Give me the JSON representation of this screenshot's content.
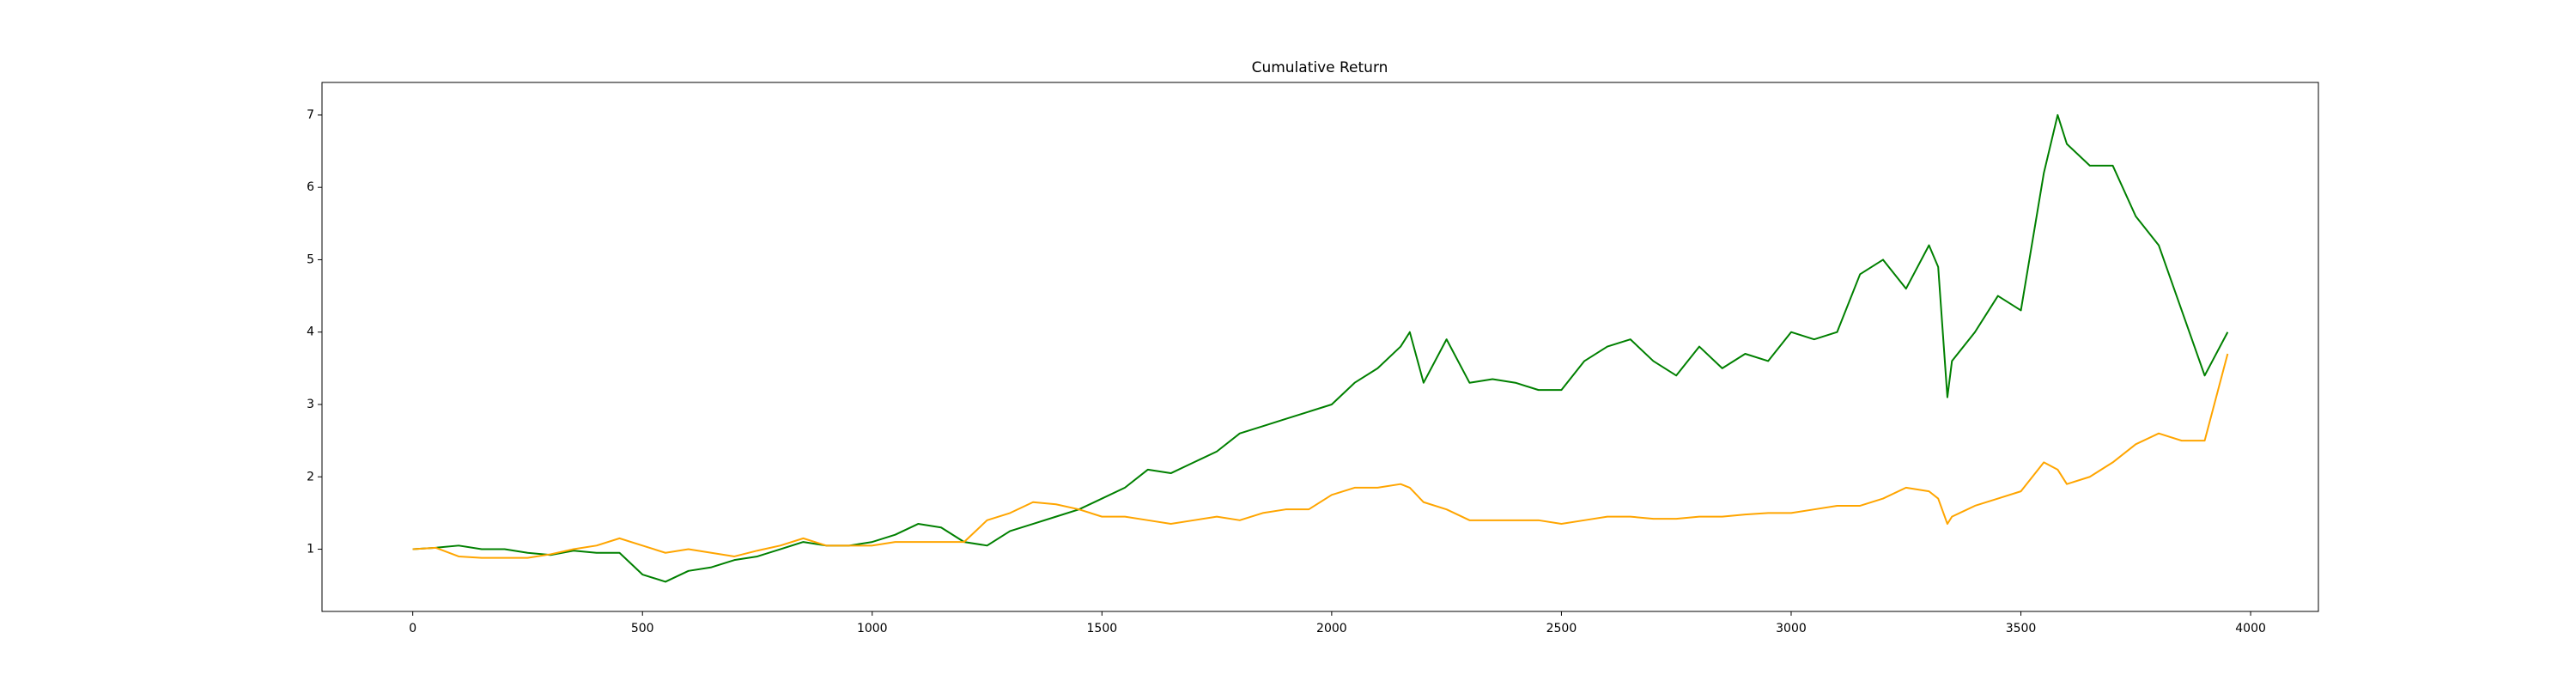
{
  "chart_data": {
    "type": "line",
    "title": "Cumulative Return",
    "x": [
      0,
      50,
      100,
      150,
      200,
      250,
      300,
      350,
      400,
      450,
      500,
      550,
      600,
      650,
      700,
      750,
      800,
      850,
      900,
      950,
      1000,
      1050,
      1100,
      1150,
      1200,
      1250,
      1300,
      1350,
      1400,
      1450,
      1500,
      1550,
      1600,
      1650,
      1700,
      1750,
      1800,
      1850,
      1900,
      1950,
      2000,
      2050,
      2100,
      2150,
      2170,
      2200,
      2250,
      2300,
      2350,
      2400,
      2450,
      2500,
      2550,
      2600,
      2650,
      2700,
      2750,
      2800,
      2850,
      2900,
      2950,
      3000,
      3050,
      3100,
      3150,
      3200,
      3250,
      3300,
      3320,
      3340,
      3350,
      3400,
      3450,
      3500,
      3550,
      3580,
      3600,
      3650,
      3700,
      3750,
      3800,
      3850,
      3900,
      3950
    ],
    "series": [
      {
        "color": "#008000",
        "values": [
          1.0,
          1.02,
          1.05,
          1.0,
          1.0,
          0.95,
          0.92,
          0.98,
          0.95,
          0.95,
          0.65,
          0.55,
          0.7,
          0.75,
          0.85,
          0.9,
          1.0,
          1.1,
          1.05,
          1.05,
          1.1,
          1.2,
          1.35,
          1.3,
          1.1,
          1.05,
          1.25,
          1.35,
          1.45,
          1.55,
          1.7,
          1.85,
          2.1,
          2.05,
          2.2,
          2.35,
          2.6,
          2.7,
          2.8,
          2.9,
          3.0,
          3.3,
          3.5,
          3.8,
          4.0,
          3.3,
          3.9,
          3.3,
          3.35,
          3.3,
          3.2,
          3.2,
          3.6,
          3.8,
          3.9,
          3.6,
          3.4,
          3.8,
          3.5,
          3.7,
          3.6,
          4.0,
          3.9,
          4.0,
          4.8,
          5.0,
          4.6,
          5.2,
          4.9,
          3.1,
          3.6,
          4.0,
          4.5,
          4.3,
          6.2,
          7.0,
          6.6,
          6.3,
          6.3,
          5.6,
          5.2,
          4.3,
          3.4,
          4.0
        ]
      },
      {
        "color": "#ffa500",
        "values": [
          1.0,
          1.02,
          0.9,
          0.88,
          0.88,
          0.88,
          0.93,
          1.0,
          1.05,
          1.15,
          1.05,
          0.95,
          1.0,
          0.95,
          0.9,
          0.98,
          1.05,
          1.15,
          1.05,
          1.05,
          1.05,
          1.1,
          1.1,
          1.1,
          1.1,
          1.4,
          1.5,
          1.65,
          1.62,
          1.55,
          1.45,
          1.45,
          1.4,
          1.35,
          1.4,
          1.45,
          1.4,
          1.5,
          1.55,
          1.55,
          1.75,
          1.85,
          1.85,
          1.9,
          1.85,
          1.65,
          1.55,
          1.4,
          1.4,
          1.4,
          1.4,
          1.35,
          1.4,
          1.45,
          1.45,
          1.42,
          1.42,
          1.45,
          1.45,
          1.48,
          1.5,
          1.5,
          1.55,
          1.6,
          1.6,
          1.7,
          1.85,
          1.8,
          1.7,
          1.35,
          1.45,
          1.6,
          1.7,
          1.8,
          2.2,
          2.1,
          1.9,
          2.0,
          2.2,
          2.45,
          2.6,
          2.5,
          2.5,
          3.7
        ]
      }
    ],
    "xlim": [
      -197.5,
      4147.5
    ],
    "ylim": [
      0.14,
      7.45
    ],
    "xticks": [
      0,
      500,
      1000,
      1500,
      2000,
      2500,
      3000,
      3500,
      4000
    ],
    "yticks": [
      1,
      2,
      3,
      4,
      5,
      6,
      7
    ]
  }
}
